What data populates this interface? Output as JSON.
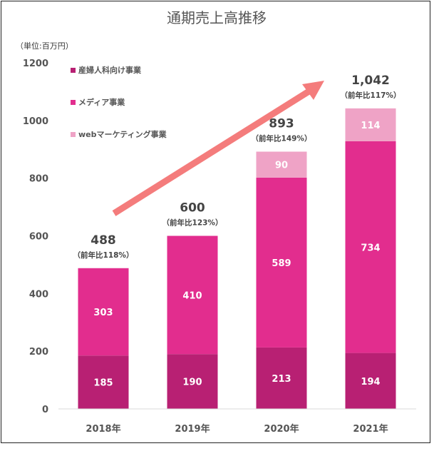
{
  "chart_data": {
    "type": "bar",
    "stacked": true,
    "title": "通期売上高推移",
    "unit_label": "（単位:百万円）",
    "categories": [
      "2018年",
      "2019年",
      "2020年",
      "2021年"
    ],
    "series": [
      {
        "name": "産婦人科向け事業",
        "color": "#B82073",
        "values": [
          185,
          190,
          213,
          194
        ]
      },
      {
        "name": "メディア事業",
        "color": "#E22D8E",
        "values": [
          303,
          410,
          589,
          734
        ]
      },
      {
        "name": "webマーケティング事業",
        "color": "#EFA3C6",
        "values": [
          0,
          0,
          90,
          114
        ]
      }
    ],
    "totals": [
      "488",
      "600",
      "893",
      "1,042"
    ],
    "yoy": [
      "（前年比118%）",
      "（前年比123%）",
      "（前年比149%）",
      "（前年比117%）"
    ],
    "yticks": [
      0,
      200,
      400,
      600,
      800,
      1000,
      1200
    ],
    "ylim": [
      0,
      1200
    ],
    "grid": false,
    "legend_position": "top-left",
    "trend_arrow_color": "#F47C7C"
  }
}
